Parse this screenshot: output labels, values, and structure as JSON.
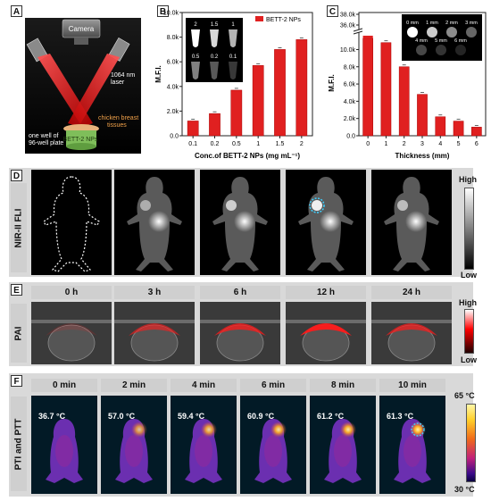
{
  "panelA": {
    "letter": "A",
    "camera": "Camera",
    "laser": "1064 nm\nlaser",
    "tissue": "chicken breast\ntissues",
    "well": "one well of\n96-well plate",
    "nps": "BETT-2 NPs"
  },
  "panelB": {
    "letter": "B",
    "inset_labels": [
      "2",
      "1.5",
      "1",
      "0.5",
      "0.2",
      "0.1"
    ]
  },
  "panelC": {
    "letter": "C",
    "inset_labels": [
      "0 mm",
      "1 mm",
      "2 mm",
      "3 mm",
      "4 mm",
      "5 mm",
      "6 mm"
    ]
  },
  "chart_data": [
    {
      "type": "bar",
      "categories": [
        "0.1",
        "0.2",
        "0.5",
        "1",
        "1.5",
        "2"
      ],
      "series": [
        {
          "name": "BETT-2 NPs",
          "values": [
            1.2,
            1.8,
            3.7,
            5.7,
            7.0,
            7.8
          ]
        }
      ],
      "xlabel": "Conc.of BETT-2 NPs (mg mL⁻¹)",
      "ylabel": "M.F.I.",
      "ylim": [
        0,
        10
      ],
      "yticks": [
        "0.0",
        "2.0k",
        "4.0k",
        "6.0k",
        "8.0k",
        "10.0k"
      ],
      "legend_placement": "top-right"
    },
    {
      "type": "bar",
      "categories": [
        "0",
        "1",
        "2",
        "3",
        "4",
        "5",
        "6"
      ],
      "series": [
        {
          "values": [
            11.3,
            10.8,
            8.0,
            4.8,
            2.2,
            1.7,
            1.0
          ]
        }
      ],
      "extra_mark": {
        "category": "0",
        "value": 11.5
      },
      "xlabel": "Thickness (mm)",
      "ylabel": "M.F.I.",
      "ylim": [
        0,
        12
      ],
      "yticks": [
        "0.0",
        "2.0k",
        "4.0k",
        "6.0k",
        "8.0k",
        "10.0k",
        "36.0k",
        "38.0k"
      ],
      "axis_break": true
    }
  ],
  "panelD": {
    "letter": "D",
    "side_label": "NIR-II FLI",
    "scale_high": "High",
    "scale_low": "Low"
  },
  "panelE": {
    "letter": "E",
    "side_label": "PAI",
    "times": [
      "0 h",
      "3 h",
      "6 h",
      "12 h",
      "24 h"
    ],
    "scale_high": "High",
    "scale_low": "Low"
  },
  "panelF": {
    "letter": "F",
    "side_label": "PTI and PTT",
    "times": [
      "0 min",
      "2 min",
      "4 min",
      "6 min",
      "8 min",
      "10 min"
    ],
    "temps": [
      "36.7 °C",
      "57.0 °C",
      "59.4 °C",
      "60.9 °C",
      "61.2 °C",
      "61.3 °C"
    ],
    "scale_high": "65 °C",
    "scale_low": "30 °C"
  },
  "colors": {
    "bar_red": "#e02020",
    "laser_red": "#ff2a2a",
    "circle_cyan": "#3fd0ff",
    "panel_bg": "#d9d9d9"
  }
}
